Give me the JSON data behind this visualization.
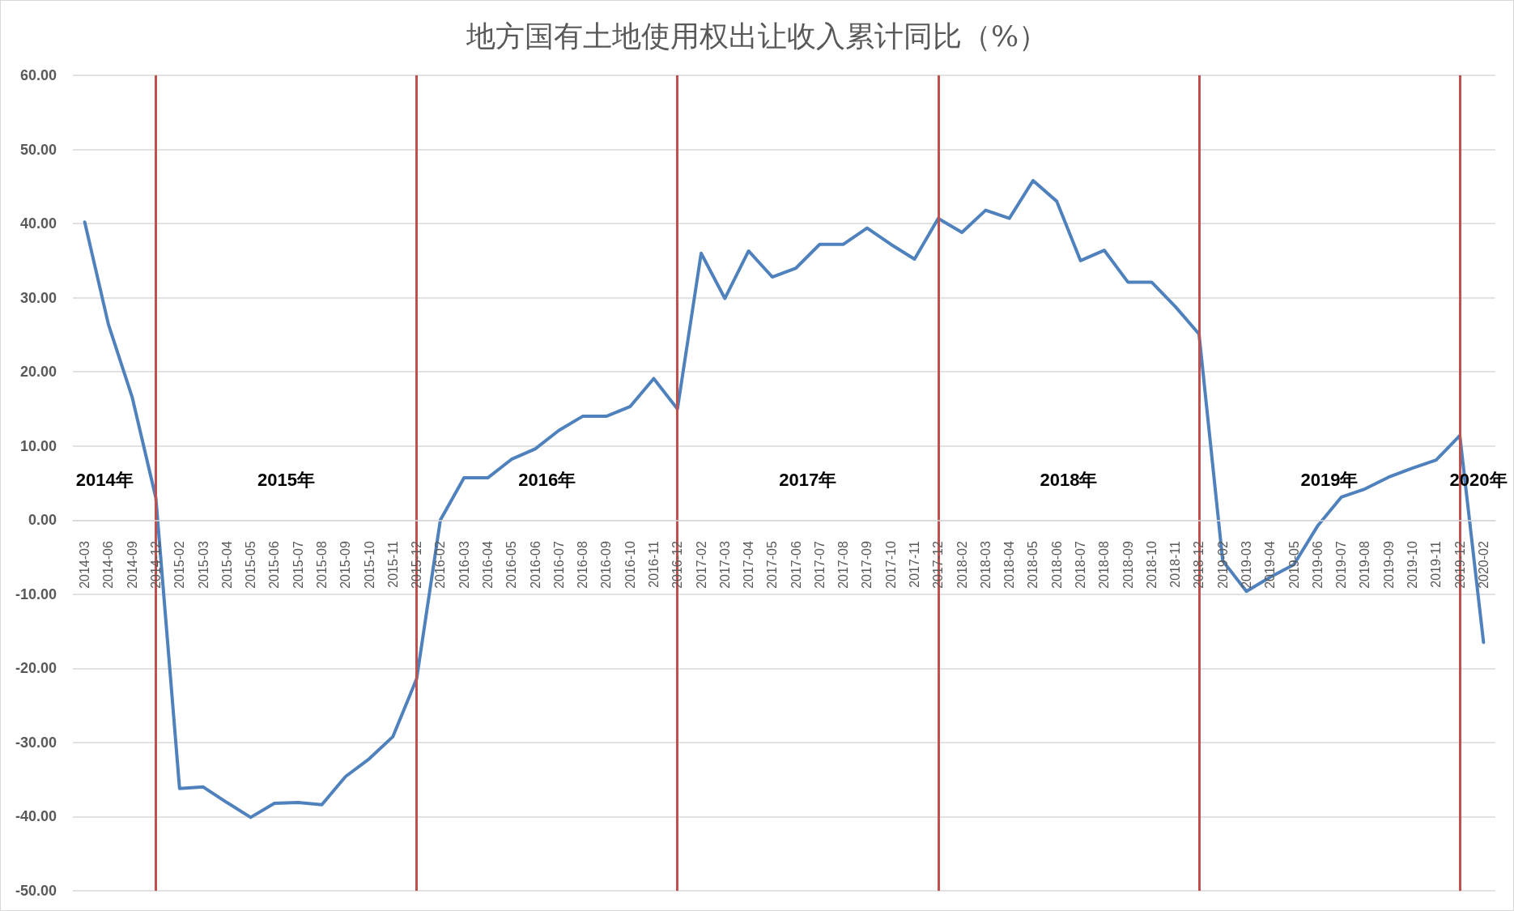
{
  "chart_data": {
    "type": "line",
    "title": "地方国有土地使用权出让收入累计同比（%）",
    "categories": [
      "2014-03",
      "2014-06",
      "2014-09",
      "2014-12",
      "2015-02",
      "2015-03",
      "2015-04",
      "2015-05",
      "2015-06",
      "2015-07",
      "2015-08",
      "2015-09",
      "2015-10",
      "2015-11",
      "2015-12",
      "2016-02",
      "2016-03",
      "2016-04",
      "2016-05",
      "2016-06",
      "2016-07",
      "2016-08",
      "2016-09",
      "2016-10",
      "2016-11",
      "2016-12",
      "2017-02",
      "2017-03",
      "2017-04",
      "2017-05",
      "2017-06",
      "2017-07",
      "2017-08",
      "2017-09",
      "2017-10",
      "2017-11",
      "2017-12",
      "2018-02",
      "2018-03",
      "2018-04",
      "2018-05",
      "2018-06",
      "2018-07",
      "2018-08",
      "2018-09",
      "2018-10",
      "2018-11",
      "2018-12",
      "2019-02",
      "2019-03",
      "2019-04",
      "2019-05",
      "2019-06",
      "2019-07",
      "2019-08",
      "2019-09",
      "2019-10",
      "2019-11",
      "2019-12",
      "2020-02"
    ],
    "series": [
      {
        "color": "#4f81bd",
        "values": [
          40.2,
          26.4,
          16.6,
          3.0,
          -36.2,
          -36.0,
          -38.1,
          -40.1,
          -38.2,
          -38.1,
          -38.4,
          -34.6,
          -32.2,
          -29.2,
          -21.4,
          0.0,
          5.7,
          5.7,
          8.2,
          9.6,
          12.1,
          14.0,
          14.0,
          15.3,
          19.1,
          15.0,
          36.0,
          29.9,
          36.3,
          32.8,
          34.0,
          37.2,
          37.2,
          39.4,
          37.2,
          35.2,
          40.7,
          38.8,
          41.8,
          40.7,
          45.8,
          43.0,
          35.0,
          36.4,
          32.1,
          32.1,
          28.8,
          25.1,
          -5.5,
          -9.6,
          -7.7,
          -6.0,
          -0.8,
          3.1,
          4.2,
          5.8,
          7.0,
          8.1,
          11.4,
          -16.5
        ]
      }
    ],
    "ylim": [
      -50,
      60
    ],
    "yticks": [
      {
        "value": -50,
        "label": "-50.00"
      },
      {
        "value": -40,
        "label": "-40.00"
      },
      {
        "value": -30,
        "label": "-30.00"
      },
      {
        "value": -20,
        "label": "-20.00"
      },
      {
        "value": -10,
        "label": "-10.00"
      },
      {
        "value": 0,
        "label": "0.00"
      },
      {
        "value": 10,
        "label": "10.00"
      },
      {
        "value": 20,
        "label": "20.00"
      },
      {
        "value": 30,
        "label": "30.00"
      },
      {
        "value": 40,
        "label": "40.00"
      },
      {
        "value": 50,
        "label": "50.00"
      },
      {
        "value": 60,
        "label": "60.00"
      }
    ],
    "grid": "y",
    "marker": "none",
    "line_style": "solid",
    "ref_lines": [
      {
        "axis": "x",
        "value": "2014-12",
        "color": "#c0504d"
      },
      {
        "axis": "x",
        "value": "2015-12",
        "color": "#c0504d"
      },
      {
        "axis": "x",
        "value": "2016-12",
        "color": "#c0504d"
      },
      {
        "axis": "x",
        "value": "2017-12",
        "color": "#c0504d"
      },
      {
        "axis": "x",
        "value": "2018-12",
        "color": "#c0504d"
      },
      {
        "axis": "x",
        "value": "2019-12",
        "color": "#c0504d"
      }
    ],
    "annotations": [
      "2014年",
      "2015年",
      "2016年",
      "2017年",
      "2018年",
      "2019年",
      "2020年"
    ]
  }
}
